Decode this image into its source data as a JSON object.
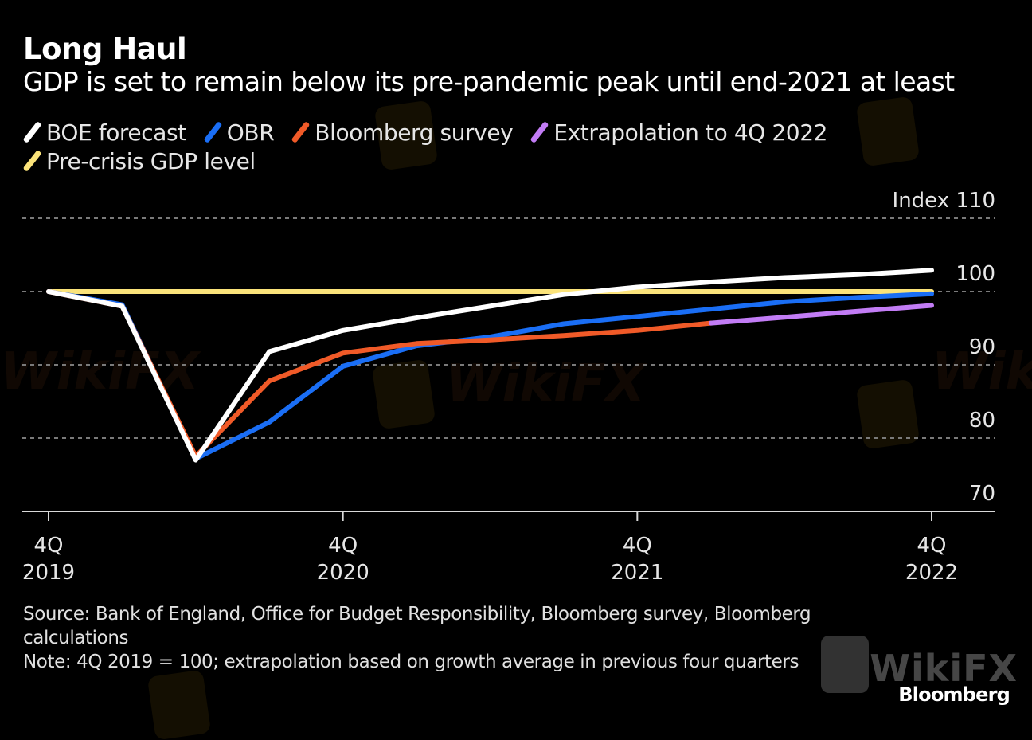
{
  "header": {
    "title": "Long Haul",
    "subtitle": "GDP is set to remain below its pre-pandemic peak until end-2021 at least"
  },
  "legend": [
    {
      "key": "boe",
      "label": "BOE forecast",
      "color": "#ffffff"
    },
    {
      "key": "obr",
      "label": "OBR",
      "color": "#1a6ef5"
    },
    {
      "key": "bloomberg",
      "label": "Bloomberg survey",
      "color": "#f05a28"
    },
    {
      "key": "extrap",
      "label": "Extrapolation to 4Q 2022",
      "color": "#c27cf5"
    },
    {
      "key": "precrisis",
      "label": "Pre-crisis GDP level",
      "color": "#fbe37a"
    }
  ],
  "chart_data": {
    "type": "line",
    "title": "Long Haul",
    "subtitle": "GDP is set to remain below its pre-pandemic peak until end-2021 at least",
    "xlabel": "",
    "ylabel": "Index",
    "ylim": [
      70,
      110
    ],
    "yticks": [
      70,
      80,
      90,
      100,
      110
    ],
    "grid": true,
    "legend_position": "top-left",
    "x": [
      "4Q 2019",
      "1Q 2020",
      "2Q 2020",
      "3Q 2020",
      "4Q 2020",
      "1Q 2021",
      "2Q 2021",
      "3Q 2021",
      "4Q 2021",
      "1Q 2022",
      "2Q 2022",
      "3Q 2022",
      "4Q 2022"
    ],
    "xticks": [
      {
        "index": 0,
        "line1": "4Q",
        "line2": "2019"
      },
      {
        "index": 4,
        "line1": "4Q",
        "line2": "2020"
      },
      {
        "index": 8,
        "line1": "4Q",
        "line2": "2021"
      },
      {
        "index": 12,
        "line1": "4Q",
        "line2": "2022"
      }
    ],
    "series": [
      {
        "name": "Pre-crisis GDP level",
        "key": "precrisis",
        "color": "#fbe37a",
        "start_index": 0,
        "values": [
          100,
          100,
          100,
          100,
          100,
          100,
          100,
          100,
          100,
          100,
          100,
          100,
          100
        ]
      },
      {
        "name": "OBR",
        "key": "obr",
        "color": "#1a6ef5",
        "start_index": 0,
        "values": [
          100,
          98.2,
          77.2,
          82.2,
          89.8,
          92.6,
          93.8,
          95.6,
          96.6,
          97.6,
          98.6,
          99.2,
          99.7
        ]
      },
      {
        "name": "Bloomberg survey",
        "key": "bloomberg",
        "color": "#f05a28",
        "start_index": 0,
        "values": [
          100,
          98.0,
          77.5,
          87.8,
          91.6,
          92.9,
          93.4,
          94.0,
          94.7,
          95.7
        ]
      },
      {
        "name": "Extrapolation to 4Q 2022",
        "key": "extrap",
        "color": "#c27cf5",
        "start_index": 9,
        "values": [
          95.7,
          96.5,
          97.3,
          98.1
        ]
      },
      {
        "name": "BOE forecast",
        "key": "boe",
        "color": "#ffffff",
        "start_index": 0,
        "values": [
          100,
          98.0,
          77.0,
          91.8,
          94.7,
          96.4,
          98.0,
          99.6,
          100.6,
          101.3,
          101.9,
          102.3,
          102.9
        ]
      }
    ]
  },
  "footer": {
    "source": "Source: Bank of England, Office for Budget Responsibility, Bloomberg survey, Bloomberg calculations",
    "note": "Note: 4Q 2019 = 100; extrapolation based on growth average in previous four quarters",
    "brand": "Bloomberg"
  },
  "watermark": {
    "text": "WikiFX"
  }
}
